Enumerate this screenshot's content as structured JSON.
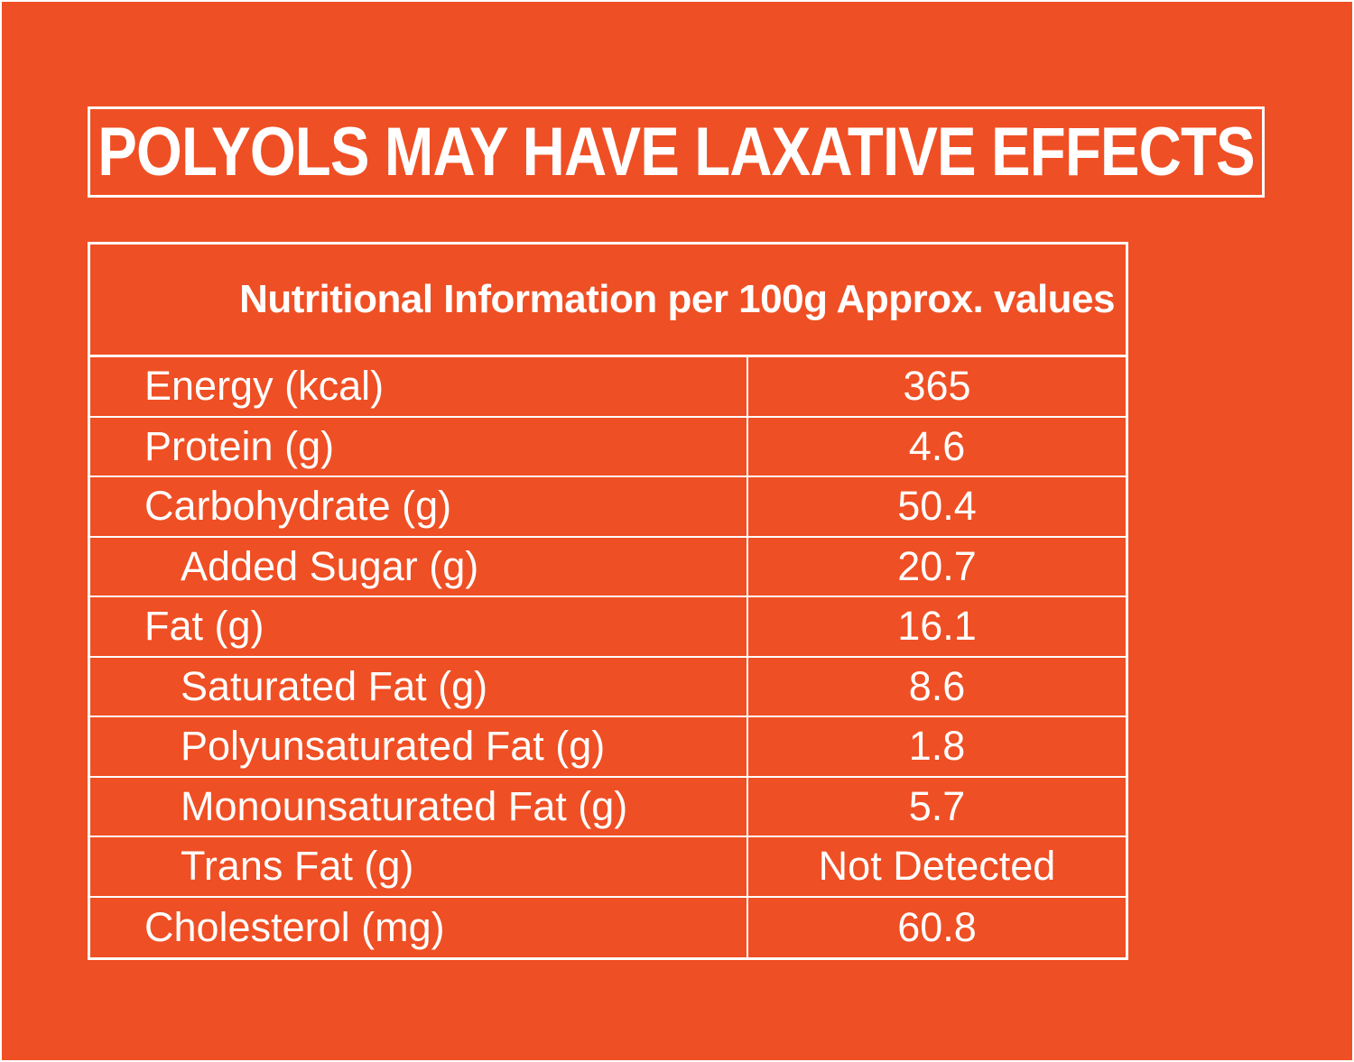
{
  "colors": {
    "background": "#ef4f24",
    "foreground": "#ffffff"
  },
  "warning": "POLYOLS MAY HAVE LAXATIVE EFFECTS",
  "table": {
    "header": "Nutritional Information per 100g Approx. values",
    "rows": [
      {
        "label": "Energy (kcal)",
        "value": "365",
        "sub": false
      },
      {
        "label": "Protein (g)",
        "value": "4.6",
        "sub": false
      },
      {
        "label": "Carbohydrate (g)",
        "value": "50.4",
        "sub": false
      },
      {
        "label": "Added Sugar (g)",
        "value": "20.7",
        "sub": true
      },
      {
        "label": "Fat (g)",
        "value": "16.1",
        "sub": false
      },
      {
        "label": "Saturated Fat (g)",
        "value": "8.6",
        "sub": true
      },
      {
        "label": "Polyunsaturated Fat (g)",
        "value": "1.8",
        "sub": true
      },
      {
        "label": "Monounsaturated Fat (g)",
        "value": "5.7",
        "sub": true
      },
      {
        "label": "Trans Fat (g)",
        "value": "Not Detected",
        "sub": true
      },
      {
        "label": "Cholesterol (mg)",
        "value": "60.8",
        "sub": false
      }
    ]
  }
}
